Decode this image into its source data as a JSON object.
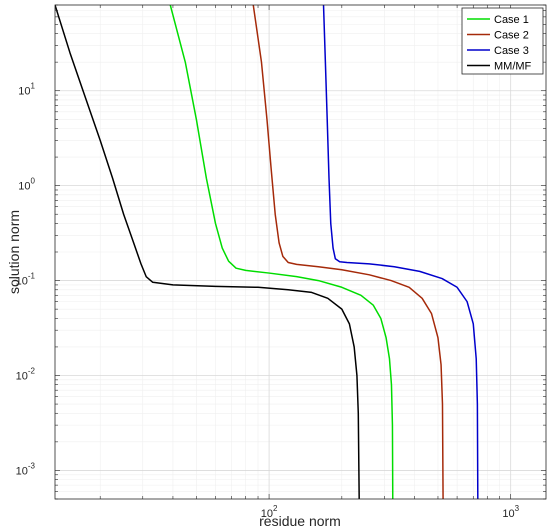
{
  "chart_data": {
    "type": "line",
    "xlabel": "residue norm",
    "ylabel": "solution norm",
    "xscale": "log",
    "yscale": "log",
    "xlim": [
      13,
      1400
    ],
    "ylim": [
      0.0005,
      80
    ],
    "grid": true,
    "legend_position": "top-right",
    "x_ticks": [
      {
        "value": 100,
        "mantissa": "10",
        "exp": "2"
      },
      {
        "value": 1000,
        "mantissa": "10",
        "exp": "3"
      }
    ],
    "y_ticks": [
      {
        "value": 0.001,
        "mantissa": "10",
        "exp": "-3"
      },
      {
        "value": 0.01,
        "mantissa": "10",
        "exp": "-2"
      },
      {
        "value": 0.1,
        "mantissa": "10",
        "exp": "-1"
      },
      {
        "value": 1,
        "mantissa": "10",
        "exp": "0"
      },
      {
        "value": 10,
        "mantissa": "10",
        "exp": "1"
      }
    ],
    "series": [
      {
        "name": "Case 1",
        "color": "#00dd00",
        "points": [
          [
            39,
            80
          ],
          [
            45,
            20
          ],
          [
            50,
            5
          ],
          [
            55,
            1.2
          ],
          [
            60,
            0.4
          ],
          [
            64,
            0.22
          ],
          [
            68,
            0.16
          ],
          [
            73,
            0.135
          ],
          [
            80,
            0.128
          ],
          [
            100,
            0.12
          ],
          [
            130,
            0.11
          ],
          [
            160,
            0.1
          ],
          [
            200,
            0.085
          ],
          [
            240,
            0.07
          ],
          [
            270,
            0.055
          ],
          [
            290,
            0.04
          ],
          [
            305,
            0.025
          ],
          [
            315,
            0.015
          ],
          [
            321,
            0.008
          ],
          [
            324,
            0.003
          ],
          [
            325,
            0.0005
          ]
        ]
      },
      {
        "name": "Case 2",
        "color": "#a52a0a",
        "points": [
          [
            86,
            80
          ],
          [
            93,
            20
          ],
          [
            98,
            5
          ],
          [
            102,
            1.5
          ],
          [
            106,
            0.5
          ],
          [
            110,
            0.25
          ],
          [
            114,
            0.18
          ],
          [
            120,
            0.155
          ],
          [
            130,
            0.148
          ],
          [
            160,
            0.14
          ],
          [
            200,
            0.13
          ],
          [
            260,
            0.115
          ],
          [
            320,
            0.1
          ],
          [
            380,
            0.085
          ],
          [
            430,
            0.065
          ],
          [
            470,
            0.045
          ],
          [
            500,
            0.025
          ],
          [
            515,
            0.013
          ],
          [
            522,
            0.005
          ],
          [
            525,
            0.0005
          ]
        ]
      },
      {
        "name": "Case 3",
        "color": "#0000cc",
        "points": [
          [
            168,
            80
          ],
          [
            171,
            20
          ],
          [
            174,
            5
          ],
          [
            177,
            1.2
          ],
          [
            180,
            0.4
          ],
          [
            184,
            0.22
          ],
          [
            188,
            0.17
          ],
          [
            196,
            0.158
          ],
          [
            210,
            0.155
          ],
          [
            260,
            0.15
          ],
          [
            330,
            0.14
          ],
          [
            420,
            0.125
          ],
          [
            520,
            0.105
          ],
          [
            600,
            0.085
          ],
          [
            660,
            0.06
          ],
          [
            700,
            0.035
          ],
          [
            720,
            0.015
          ],
          [
            728,
            0.005
          ],
          [
            731,
            0.0005
          ]
        ]
      },
      {
        "name": "MM/MF",
        "color": "#000000",
        "points": [
          [
            13,
            80
          ],
          [
            15,
            25
          ],
          [
            17.5,
            8
          ],
          [
            20,
            3
          ],
          [
            22.5,
            1.2
          ],
          [
            25,
            0.5
          ],
          [
            27.5,
            0.25
          ],
          [
            29.5,
            0.15
          ],
          [
            31,
            0.11
          ],
          [
            33,
            0.096
          ],
          [
            40,
            0.09
          ],
          [
            60,
            0.087
          ],
          [
            90,
            0.085
          ],
          [
            120,
            0.08
          ],
          [
            150,
            0.075
          ],
          [
            175,
            0.065
          ],
          [
            200,
            0.05
          ],
          [
            215,
            0.035
          ],
          [
            225,
            0.02
          ],
          [
            231,
            0.01
          ],
          [
            234,
            0.004
          ],
          [
            236,
            0.0005
          ]
        ]
      }
    ]
  }
}
